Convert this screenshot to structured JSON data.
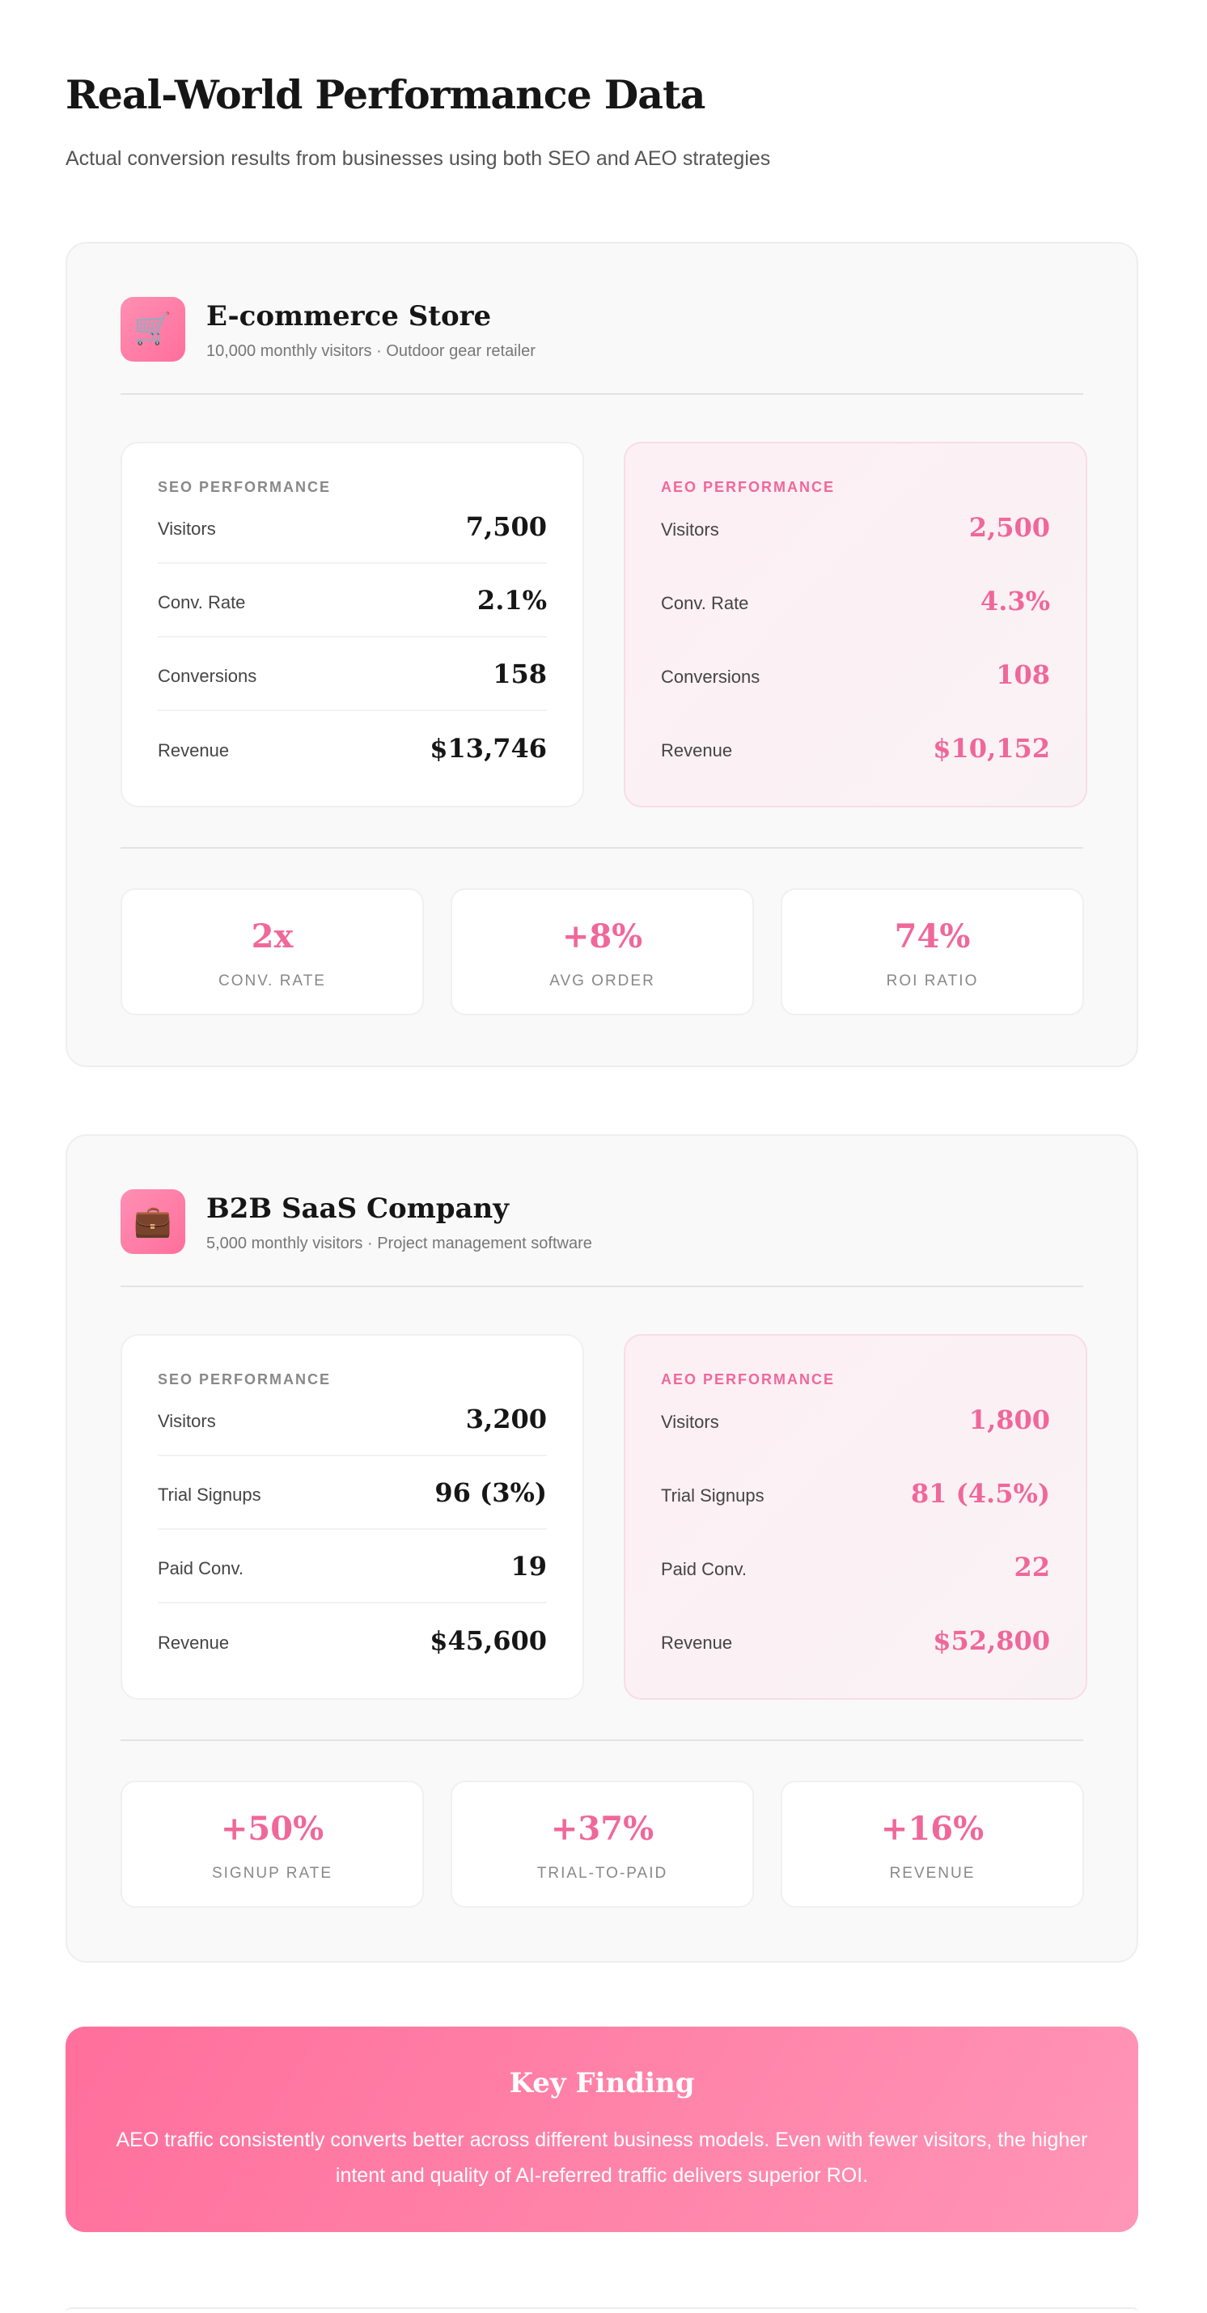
{
  "title": "Real-World Performance Data",
  "subtitle": "Actual conversion results from businesses using both SEO and AEO strategies",
  "cases": [
    {
      "icon": "shopping-cart-icon",
      "icon_glyph": "🛒",
      "name": "E-commerce Store",
      "meta": "10,000 monthly visitors · Outdoor gear retailer",
      "seo": {
        "label": "SEO PERFORMANCE",
        "rows": [
          {
            "label": "Visitors",
            "value": "7,500"
          },
          {
            "label": "Conv. Rate",
            "value": "2.1%"
          },
          {
            "label": "Conversions",
            "value": "158"
          },
          {
            "label": "Revenue",
            "value": "$13,746"
          }
        ]
      },
      "aeo": {
        "label": "AEO PERFORMANCE",
        "rows": [
          {
            "label": "Visitors",
            "value": "2,500"
          },
          {
            "label": "Conv. Rate",
            "value": "4.3%"
          },
          {
            "label": "Conversions",
            "value": "108"
          },
          {
            "label": "Revenue",
            "value": "$10,152"
          }
        ]
      },
      "stats": [
        {
          "value": "2x",
          "label": "CONV. RATE"
        },
        {
          "value": "+8%",
          "label": "AVG ORDER"
        },
        {
          "value": "74%",
          "label": "ROI RATIO"
        }
      ]
    },
    {
      "icon": "briefcase-icon",
      "icon_glyph": "💼",
      "name": "B2B SaaS Company",
      "meta": "5,000 monthly visitors · Project management software",
      "seo": {
        "label": "SEO PERFORMANCE",
        "rows": [
          {
            "label": "Visitors",
            "value": "3,200"
          },
          {
            "label": "Trial Signups",
            "value": "96 (3%)"
          },
          {
            "label": "Paid Conv.",
            "value": "19"
          },
          {
            "label": "Revenue",
            "value": "$45,600"
          }
        ]
      },
      "aeo": {
        "label": "AEO PERFORMANCE",
        "rows": [
          {
            "label": "Visitors",
            "value": "1,800"
          },
          {
            "label": "Trial Signups",
            "value": "81 (4.5%)"
          },
          {
            "label": "Paid Conv.",
            "value": "22"
          },
          {
            "label": "Revenue",
            "value": "$52,800"
          }
        ]
      },
      "stats": [
        {
          "value": "+50%",
          "label": "SIGNUP RATE"
        },
        {
          "value": "+37%",
          "label": "TRIAL-TO-PAID"
        },
        {
          "value": "+16%",
          "label": "REVENUE"
        }
      ]
    }
  ],
  "key_finding": {
    "title": "Key Finding",
    "body": "AEO traffic consistently converts better across different business models. Even with fewer visitors, the higher intent and quality of AI-referred traffic delivers superior ROI."
  },
  "colors": {
    "accent": "#f0679a",
    "card_bg": "#f9f9f9",
    "banner_start": "#ff6f9c",
    "banner_end": "#ff96b8"
  }
}
